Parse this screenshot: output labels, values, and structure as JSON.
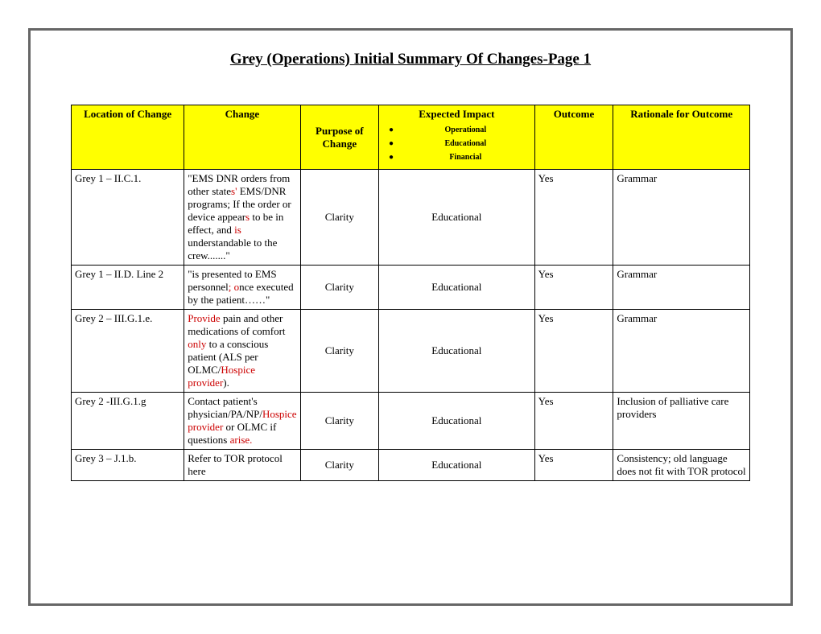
{
  "title": "Grey (Operations) Initial Summary Of Changes-Page 1",
  "header": {
    "location": "Location of Change",
    "change": "Change",
    "purpose": "Purpose of Change",
    "impact_title": "Expected Impact",
    "impact_items": [
      "Operational",
      "Educational",
      "Financial"
    ],
    "outcome": "Outcome",
    "rationale": "Rationale for Outcome"
  },
  "colors": {
    "header_bg": "#ffff00",
    "border": "#000000",
    "frame_border": "#666666",
    "red_text": "#cc0000"
  },
  "rows": [
    {
      "location": "Grey 1 – II.C.1.",
      "change_segments": [
        {
          "t": "\"EMS DNR orders from other state"
        },
        {
          "t": "s'",
          "red": true
        },
        {
          "t": " EMS/DNR programs; If the order or device appear"
        },
        {
          "t": "s",
          "red": true
        },
        {
          "t": " to be in effect, and "
        },
        {
          "t": "is",
          "red": true
        },
        {
          "t": " understandable to the crew.......\""
        }
      ],
      "purpose": "Clarity",
      "impact": "Educational",
      "outcome": "Yes",
      "rationale": "Grammar"
    },
    {
      "location": "Grey 1 – II.D. Line 2",
      "change_segments": [
        {
          "t": "\"is presented to EMS personnel"
        },
        {
          "t": "; o",
          "red": true
        },
        {
          "t": "nce executed by the patient……\""
        }
      ],
      "purpose": "Clarity",
      "impact": "Educational",
      "outcome": "Yes",
      "rationale": "Grammar"
    },
    {
      "location": "Grey 2  – III.G.1.e.",
      "change_segments": [
        {
          "t": "Provide",
          "red": true
        },
        {
          "t": " pain and other medications of comfort "
        },
        {
          "t": "only",
          "red": true
        },
        {
          "t": " to a conscious patient (ALS per OLMC/"
        },
        {
          "t": "Hospice provider",
          "red": true
        },
        {
          "t": ")."
        }
      ],
      "purpose": "Clarity",
      "impact": "Educational",
      "outcome": "Yes",
      "rationale": "Grammar"
    },
    {
      "location": "Grey 2 -III.G.1.g",
      "change_segments": [
        {
          "t": "Contact patient's physician/PA/NP/"
        },
        {
          "t": "Hospice provider",
          "red": true
        },
        {
          "t": " or OLMC if questions "
        },
        {
          "t": "arise.",
          "red": true
        }
      ],
      "purpose": "Clarity",
      "impact": "Educational",
      "outcome": "Yes",
      "rationale": "Inclusion of palliative care providers"
    },
    {
      "location": "Grey 3 – J.1.b.",
      "change_segments": [
        {
          "t": "Refer to TOR protocol here"
        }
      ],
      "purpose": "Clarity",
      "impact": "Educational",
      "outcome": "Yes",
      "rationale": "Consistency; old language does not fit with TOR protocol"
    }
  ]
}
